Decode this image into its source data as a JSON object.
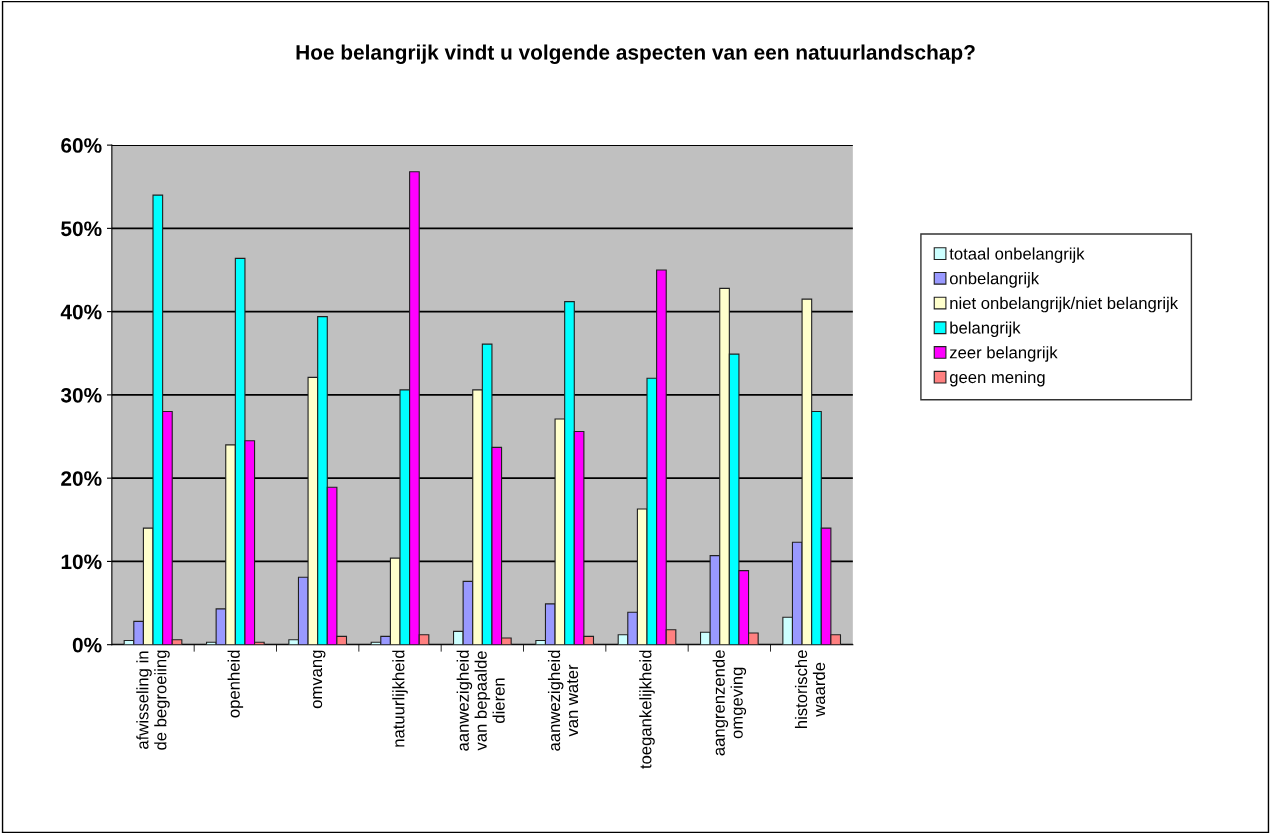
{
  "chart_data": {
    "type": "bar",
    "title": "Hoe belangrijk vindt u volgende aspecten van een natuurlandschap?",
    "categories": [
      "afwisseling in\nde begroeiing",
      "openheid",
      "omvang",
      "natuurlijkheid",
      "aanwezigheid\nvan bepaalde\ndieren",
      "aanwezigheid\nvan water",
      "toegankelijkheid",
      "aangrenzende\nomgeving",
      "historische\nwaarde"
    ],
    "series": [
      {
        "name": "totaal onbelangrijk",
        "color": "#ccffff",
        "values": [
          0.5,
          0.3,
          0.6,
          0.3,
          1.6,
          0.5,
          1.2,
          1.5,
          3.3
        ]
      },
      {
        "name": "onbelangrijk",
        "color": "#9999ff",
        "values": [
          2.8,
          4.3,
          8.1,
          1.0,
          7.6,
          4.9,
          3.9,
          10.7,
          12.3
        ]
      },
      {
        "name": "niet onbelangrijk/niet belangrijk",
        "color": "#ffffcc",
        "values": [
          14.0,
          24.0,
          32.1,
          10.4,
          30.6,
          27.1,
          16.3,
          42.8,
          41.5
        ]
      },
      {
        "name": "belangrijk",
        "color": "#00ffff",
        "values": [
          54.0,
          46.4,
          39.4,
          30.6,
          36.1,
          41.2,
          32.0,
          34.9,
          28.0
        ]
      },
      {
        "name": "zeer belangrijk",
        "color": "#ff00ff",
        "values": [
          28.0,
          24.5,
          18.9,
          56.8,
          23.7,
          25.6,
          45.0,
          8.9,
          14.0
        ]
      },
      {
        "name": "geen mening",
        "color": "#ff8080",
        "values": [
          0.6,
          0.3,
          1.0,
          1.2,
          0.8,
          1.0,
          1.8,
          1.4,
          1.2
        ]
      }
    ],
    "ylim": [
      0,
      60
    ],
    "yticks": [
      {
        "value": 0,
        "label": "0%"
      },
      {
        "value": 10,
        "label": "10%"
      },
      {
        "value": 20,
        "label": "20%"
      },
      {
        "value": 30,
        "label": "30%"
      },
      {
        "value": 40,
        "label": "40%"
      },
      {
        "value": 50,
        "label": "50%"
      },
      {
        "value": 60,
        "label": "60%"
      }
    ],
    "grid": "y",
    "legend": "right"
  }
}
